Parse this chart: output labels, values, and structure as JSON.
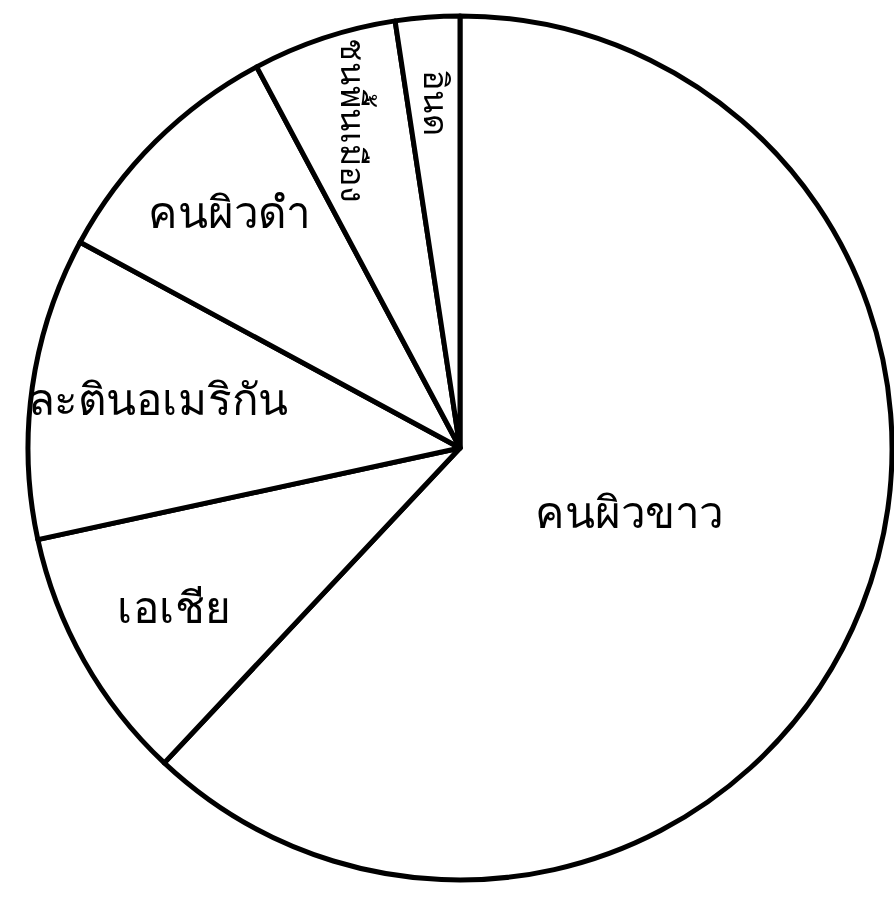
{
  "chart_data": {
    "type": "pie",
    "categories": [
      "คนผิวขาว",
      "เอเชีย",
      "ละตินอเมริกัน",
      "คนผิวดำ",
      "ชนพื้นเมือง",
      "อินด"
    ],
    "values": [
      62.0,
      9.6,
      11.3,
      9.3,
      5.4,
      2.4
    ],
    "colors": [
      "#ffffff",
      "#ffffff",
      "#ffffff",
      "#ffffff",
      "#ffffff",
      "#ffffff"
    ]
  }
}
